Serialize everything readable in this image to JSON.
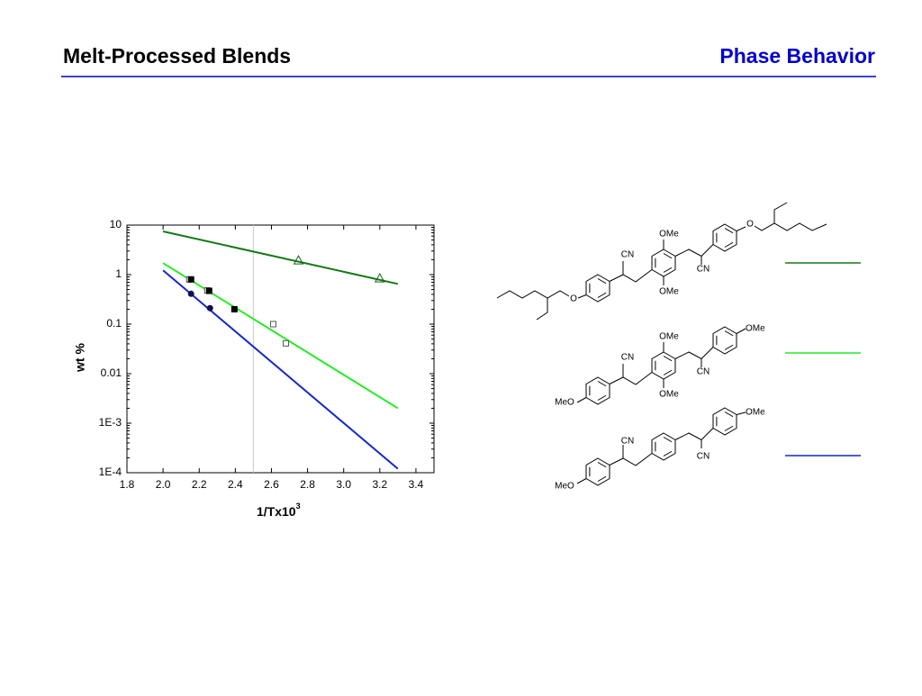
{
  "header": {
    "title": "Melt-Processed Blends",
    "section": "Phase Behavior"
  },
  "chart_data": {
    "type": "scatter",
    "x_label": "1/Tx10",
    "x_label_sup": "3",
    "y_label": "wt %",
    "log_y": true,
    "xlim": [
      1.8,
      3.5
    ],
    "ylim": [
      0.0001,
      10
    ],
    "xticks": [
      1.8,
      {
        "value": 2,
        "label": "2.0"
      },
      2.2,
      2.4,
      2.6,
      2.8,
      {
        "value": 3,
        "label": "3.0"
      },
      3.2,
      3.4
    ],
    "yticks": [
      {
        "value": 0.0001,
        "label": "1E-4"
      },
      {
        "value": 0.001,
        "label": "1E-3"
      },
      0.01,
      0.1,
      1,
      10
    ],
    "vline": 2.5,
    "series": [
      {
        "marker": "triangle-open",
        "color": "#1a5e1a",
        "x": [
          2.75,
          3.2
        ],
        "values": [
          1.94,
          0.84
        ]
      },
      {
        "marker": "square-open",
        "color": "#555555",
        "x": [
          2.145,
          2.245,
          2.61,
          2.68
        ],
        "values": [
          0.8,
          0.48,
          0.1,
          0.041
        ]
      },
      {
        "marker": "square",
        "color": "#000000",
        "x": [
          2.155,
          2.255,
          2.395
        ],
        "values": [
          0.8,
          0.47,
          0.2
        ]
      },
      {
        "marker": "circle",
        "color": "#101050",
        "x": [
          2.155,
          2.26
        ],
        "values": [
          0.41,
          0.21
        ]
      }
    ],
    "fits": [
      {
        "color": "#137a13",
        "x": [
          2.0,
          3.3
        ],
        "values": [
          7.45,
          0.65
        ]
      },
      {
        "color": "#22ee22",
        "x": [
          2.0,
          3.3
        ],
        "values": [
          1.71,
          0.002
        ]
      },
      {
        "color": "#1428c8",
        "x": [
          2.0,
          3.3
        ],
        "values": [
          1.22,
          0.00012
        ]
      }
    ]
  },
  "structures": [
    {
      "labels": [
        "OMe",
        "CN",
        "CN",
        "OMe",
        "O",
        "O"
      ],
      "line_color": "#137a13"
    },
    {
      "labels": [
        "OMe",
        "CN",
        "CN",
        "OMe",
        "MeO",
        "OMe"
      ],
      "line_color": "#22ee22"
    },
    {
      "labels": [
        "CN",
        "CN",
        "MeO",
        "OMe"
      ],
      "line_color": "#1428c8"
    }
  ]
}
